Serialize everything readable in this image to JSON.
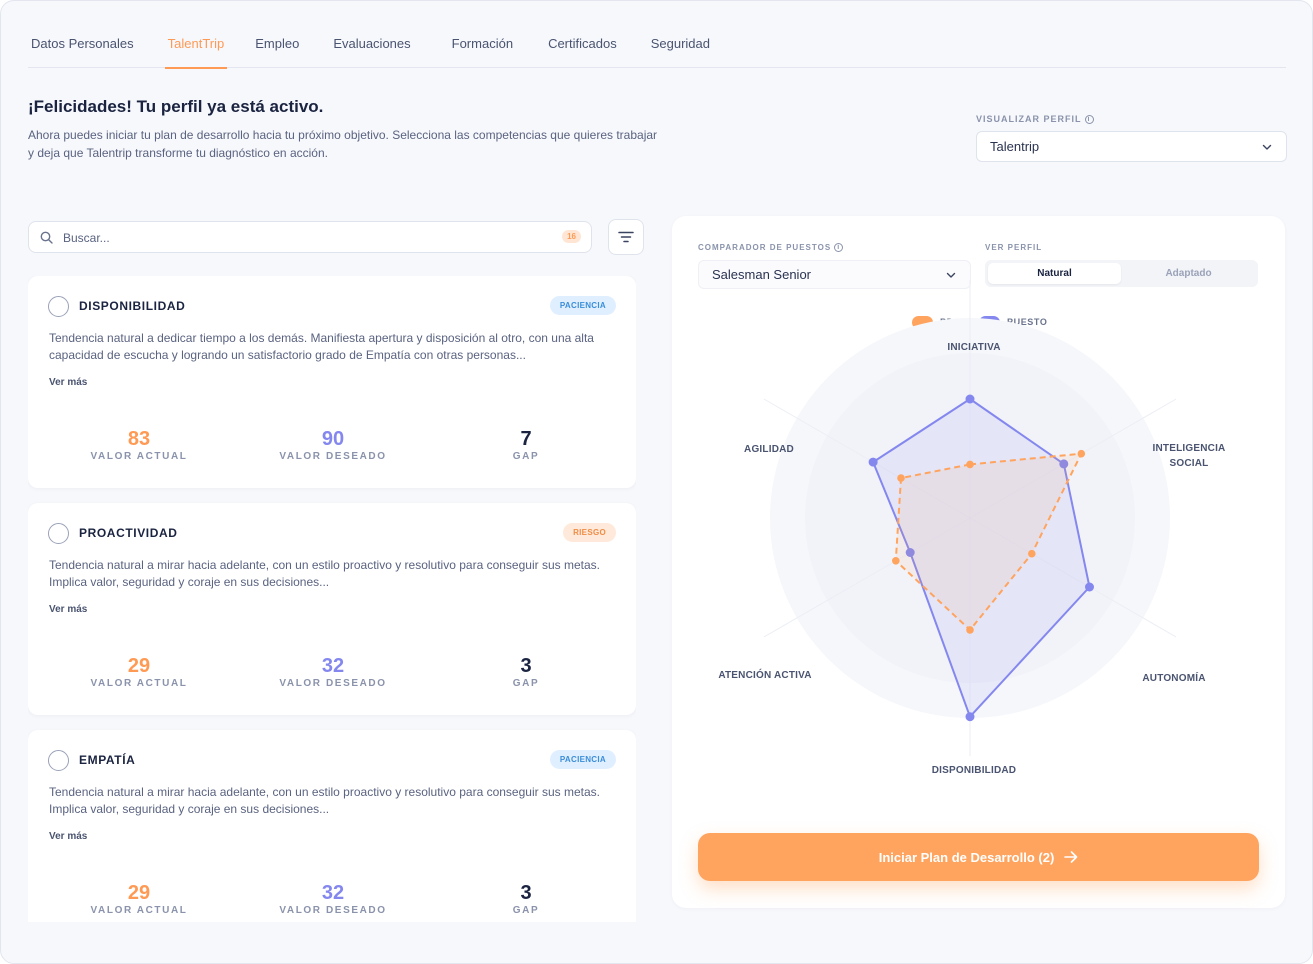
{
  "tabs": [
    {
      "label": "Datos Personales",
      "active": false
    },
    {
      "label": "TalentTrip",
      "active": true
    },
    {
      "label": "Empleo",
      "active": false
    },
    {
      "label": "Evaluaciones",
      "active": false
    },
    {
      "label": "Formación",
      "active": false
    },
    {
      "label": "Certificados",
      "active": false
    },
    {
      "label": "Seguridad",
      "active": false
    }
  ],
  "header": {
    "title": "¡Felicidades! Tu perfil ya está activo.",
    "description": "Ahora puedes iniciar tu plan de desarrollo hacia tu próximo objetivo. Selecciona las competencias que quieres trabajar y deja que Talentrip transforme tu diagnóstico en acción."
  },
  "view_profile": {
    "label": "VISUALIZAR PERFIL",
    "info_icon": "i",
    "value": "Talentrip"
  },
  "search": {
    "placeholder": "Buscar...",
    "count": "16"
  },
  "metric_labels": {
    "actual": "VALOR ACTUAL",
    "desired": "VALOR DESEADO",
    "gap": "GAP"
  },
  "see_more": "Ver más",
  "cards": [
    {
      "name": "DISPONIBILIDAD",
      "badge": "PACIENCIA",
      "badge_color": "#3a8dd8",
      "description": "Tendencia natural a dedicar tiempo a los demás. Manifiesta apertura y disposición al otro, con una alta capacidad de escucha y logrando un satisfactorio grado de Empatía con otras personas...",
      "actual": "83",
      "desired": "90",
      "gap": "7"
    },
    {
      "name": "PROACTIVIDAD",
      "badge": "RIESGO",
      "badge_color": "#ef8d45",
      "description": "Tendencia natural a mirar hacia adelante, con un estilo proactivo y resolutivo para conseguir sus metas. Implica valor, seguridad y coraje en sus decisiones...",
      "actual": "29",
      "desired": "32",
      "gap": "3"
    },
    {
      "name": "EMPATÍA",
      "badge": "PACIENCIA",
      "badge_color": "#3a8dd8",
      "description": "Tendencia natural a mirar hacia adelante, con un estilo proactivo y resolutivo para conseguir sus metas. Implica valor, seguridad y coraje en sus decisiones...",
      "actual": "29",
      "desired": "32",
      "gap": "3"
    }
  ],
  "comparator": {
    "label": "COMPARADOR DE PUESTOS",
    "info_icon": "i",
    "value": "Salesman Senior"
  },
  "view_mode": {
    "label": "VER PERFIL",
    "options": [
      "Natural",
      "Adaptado"
    ],
    "selected": "Natural"
  },
  "cta": {
    "label": "Iniciar Plan de Desarrollo (2)"
  },
  "colors": {
    "accent": "#ff9a55",
    "pda": "#ffa45f",
    "puesto": "#8487ee"
  },
  "chart_data": {
    "type": "radar",
    "axes": [
      "INICIATIVA",
      "INTELIGENCIA SOCIAL",
      "AUTONOMÍA",
      "DISPONIBILIDAD",
      "ATENCIÓN ACTIVA",
      "AGILIDAD"
    ],
    "series": [
      {
        "name": "PDA",
        "values": [
          0.45,
          1.08,
          0.6,
          0.94,
          0.72,
          0.67
        ],
        "style": "dashed",
        "color": "#ffa45f"
      },
      {
        "name": "PUESTO",
        "values": [
          1.0,
          0.91,
          1.16,
          1.67,
          0.58,
          0.94
        ],
        "style": "solid",
        "color": "#8487ee"
      }
    ],
    "legend_position": "top-center",
    "grid": true
  }
}
